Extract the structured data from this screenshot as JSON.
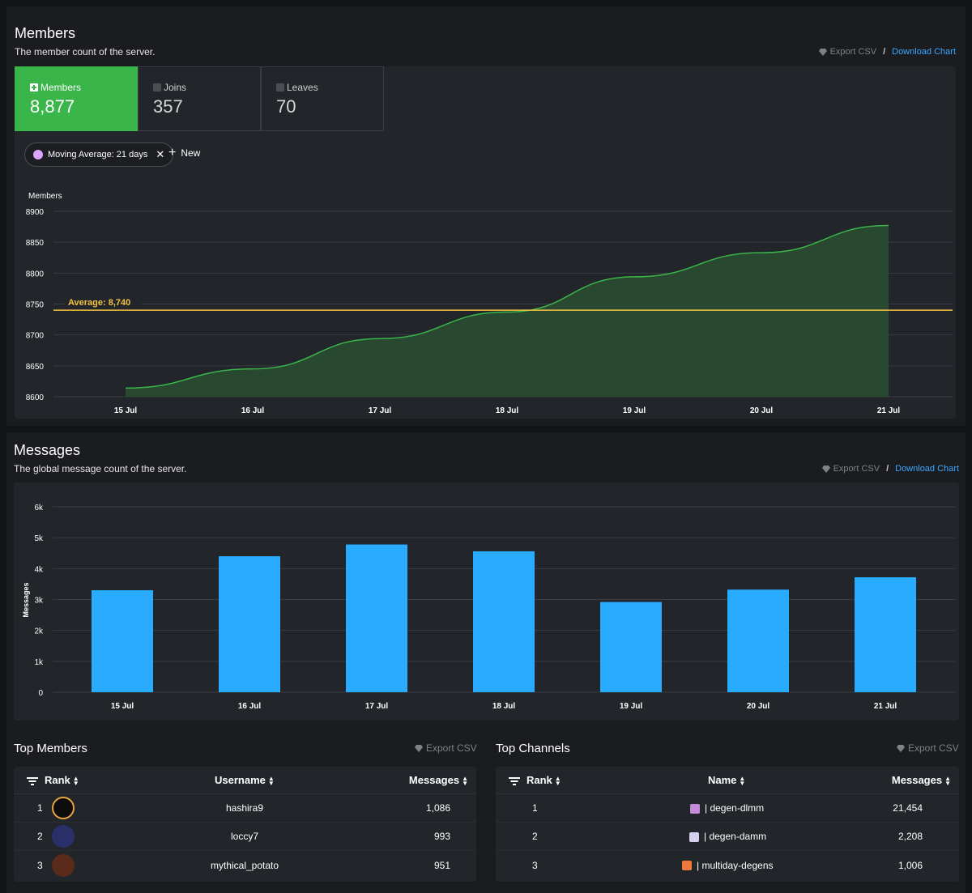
{
  "members_section": {
    "title": "Members",
    "subtitle": "The member count of the server.",
    "export_csv": "Export CSV",
    "separator": "/",
    "download_chart": "Download Chart",
    "stats": [
      {
        "label": "Members",
        "value": "8,877",
        "active": true
      },
      {
        "label": "Joins",
        "value": "357",
        "active": false
      },
      {
        "label": "Leaves",
        "value": "70",
        "active": false
      }
    ],
    "moving_average_label": "Moving Average: 21 days",
    "moving_average_color": "#d9a3ff",
    "new_label": "New",
    "average_label": "Average: 8,740"
  },
  "messages_section": {
    "title": "Messages",
    "subtitle": "The global message count of the server.",
    "export_csv": "Export CSV",
    "separator": "/",
    "download_chart": "Download Chart"
  },
  "chart_data": [
    {
      "type": "area",
      "title": "",
      "ylabel": "Members",
      "xlabel": "",
      "x": [
        "15 Jul",
        "16 Jul",
        "17 Jul",
        "18 Jul",
        "19 Jul",
        "20 Jul",
        "21 Jul"
      ],
      "series": [
        {
          "values": [
            8614,
            8645,
            8694,
            8737,
            8794,
            8833,
            8877
          ]
        }
      ],
      "average": 8740,
      "ylim": [
        8600,
        8900
      ],
      "yticks": [
        8600,
        8650,
        8700,
        8750,
        8800,
        8850,
        8900
      ],
      "grid": true,
      "line_color": "#3ab54a",
      "average_color": "#f5c342"
    },
    {
      "type": "bar",
      "title": "",
      "ylabel": "Messages",
      "xlabel": "",
      "categories": [
        "15 Jul",
        "16 Jul",
        "17 Jul",
        "18 Jul",
        "19 Jul",
        "20 Jul",
        "21 Jul"
      ],
      "values": [
        3300,
        4400,
        4780,
        4560,
        2920,
        3320,
        3720
      ],
      "ylim": [
        0,
        6000
      ],
      "yticks": [
        "0",
        "1k",
        "2k",
        "3k",
        "4k",
        "5k",
        "6k"
      ],
      "grid": true,
      "bar_color": "#29abff"
    }
  ],
  "top_members": {
    "title": "Top Members",
    "export_csv": "Export CSV",
    "columns": [
      "Rank",
      "Username",
      "Messages"
    ],
    "rows": [
      {
        "rank": "1",
        "username": "hashira9",
        "messages": "1,086"
      },
      {
        "rank": "2",
        "username": "loccy7",
        "messages": "993"
      },
      {
        "rank": "3",
        "username": "mythical_potato",
        "messages": "951"
      }
    ]
  },
  "top_channels": {
    "title": "Top Channels",
    "export_csv": "Export CSV",
    "columns": [
      "Rank",
      "Name",
      "Messages"
    ],
    "rows": [
      {
        "rank": "1",
        "name": "| degen-dlmm",
        "messages": "21,454",
        "icon_color": "#c48bd8"
      },
      {
        "rank": "2",
        "name": "| degen-damm",
        "messages": "2,208",
        "icon_color": "#d6d0f0"
      },
      {
        "rank": "3",
        "name": "| multiday-degens",
        "messages": "1,006",
        "icon_color": "#f07a3a"
      }
    ]
  }
}
